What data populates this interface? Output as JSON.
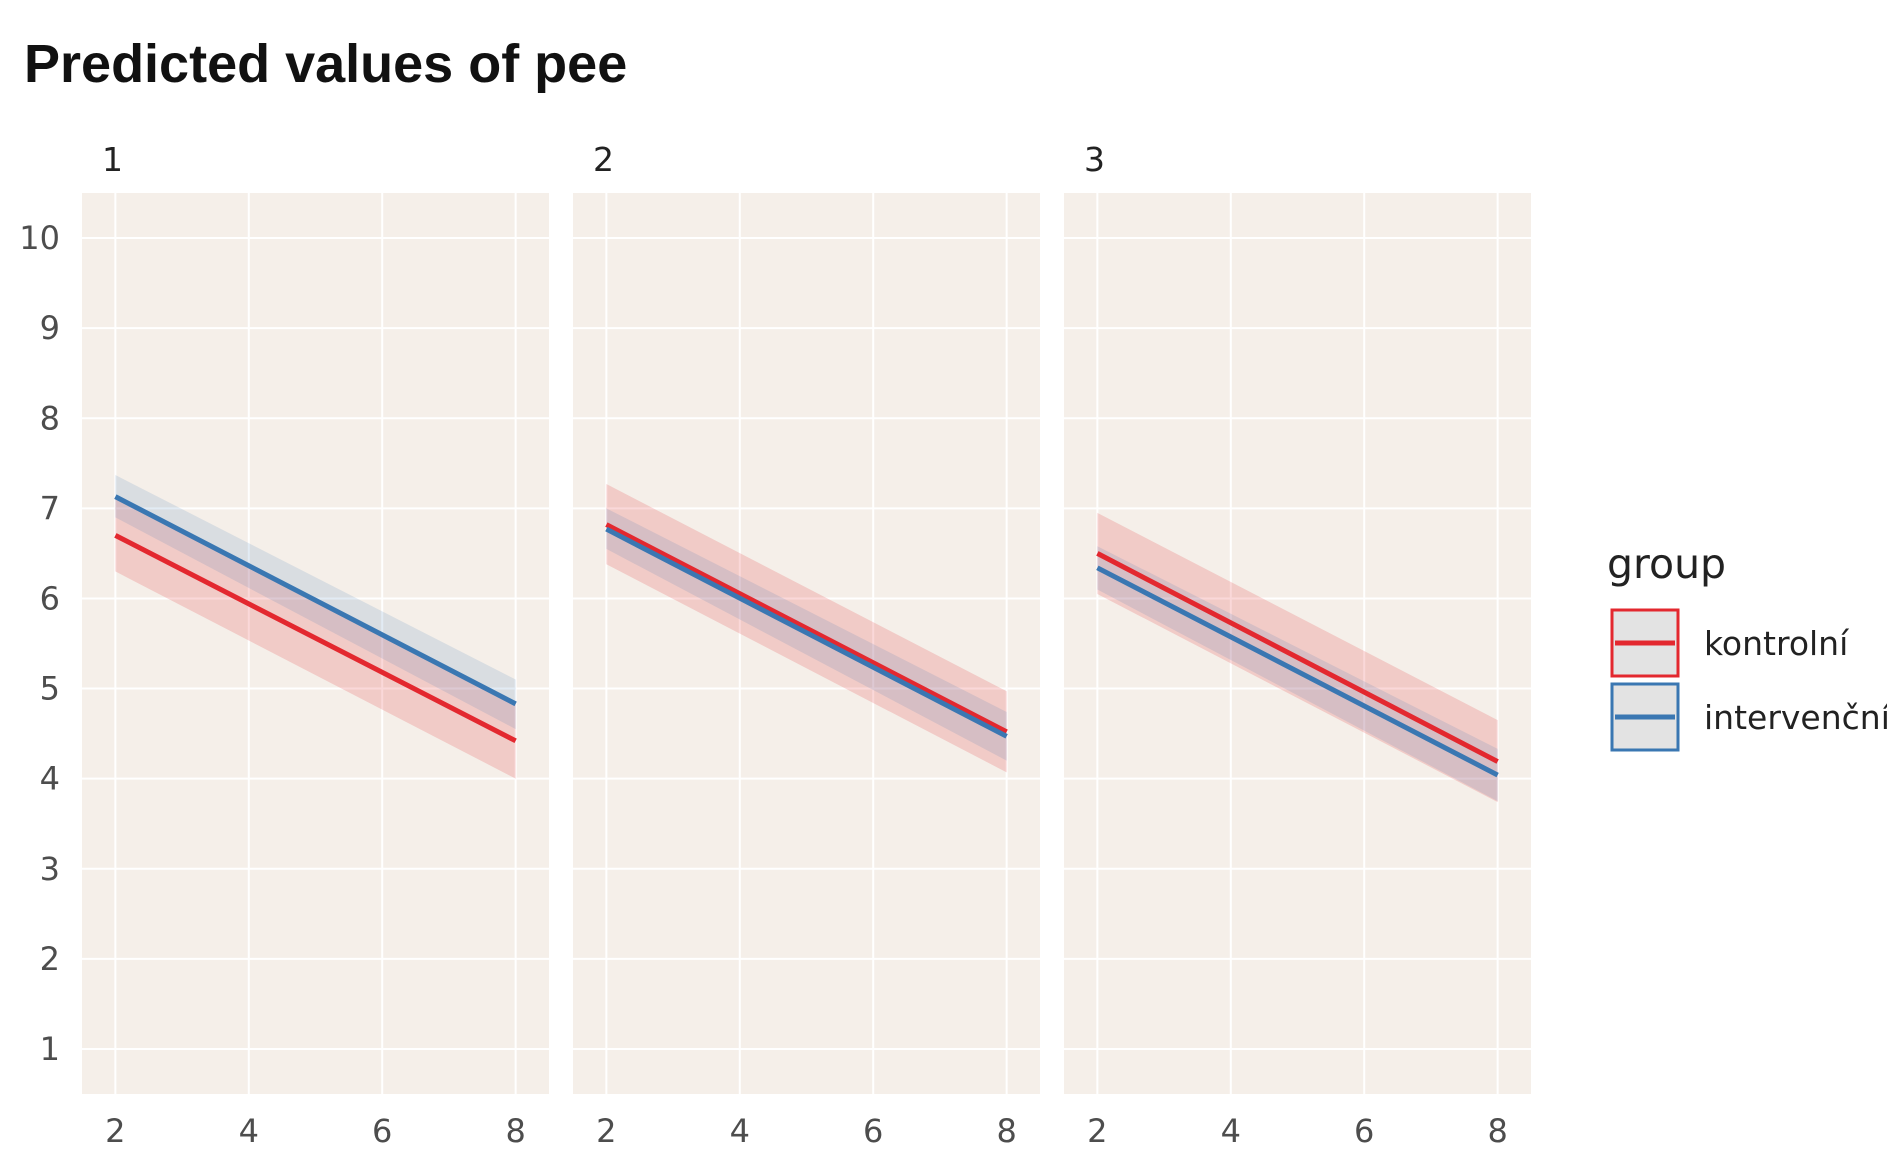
{
  "chart_data": {
    "type": "line",
    "title": "Predicted values of pee",
    "xlabel": "",
    "ylabel": "",
    "xlim": [
      1.5,
      8.5
    ],
    "ylim": [
      0.5,
      10.5
    ],
    "x_ticks": [
      2,
      4,
      6,
      8
    ],
    "y_ticks": [
      1,
      2,
      3,
      4,
      5,
      6,
      7,
      8,
      9,
      10
    ],
    "grid": true,
    "background": "#f5efe9",
    "legend": {
      "title": "group",
      "position": "right",
      "entries": [
        {
          "name": "kontrolní",
          "color": "#e3282f"
        },
        {
          "name": "intervenční",
          "color": "#3a77b2"
        }
      ]
    },
    "panels": [
      {
        "label": "1",
        "series": [
          {
            "name": "kontrolní",
            "color": "#e3282f",
            "x": [
              2,
              8
            ],
            "y": [
              6.7,
              4.42
            ],
            "ci_low": [
              6.3,
              4.0
            ],
            "ci_high": [
              7.1,
              4.85
            ]
          },
          {
            "name": "intervenční",
            "color": "#3a77b2",
            "x": [
              2,
              8
            ],
            "y": [
              7.13,
              4.83
            ],
            "ci_low": [
              6.9,
              4.55
            ],
            "ci_high": [
              7.37,
              5.1
            ]
          }
        ]
      },
      {
        "label": "2",
        "series": [
          {
            "name": "kontrolní",
            "color": "#e3282f",
            "x": [
              2,
              8
            ],
            "y": [
              6.82,
              4.52
            ],
            "ci_low": [
              6.38,
              4.07
            ],
            "ci_high": [
              7.27,
              4.97
            ]
          },
          {
            "name": "intervenční",
            "color": "#3a77b2",
            "x": [
              2,
              8
            ],
            "y": [
              6.77,
              4.47
            ],
            "ci_low": [
              6.55,
              4.2
            ],
            "ci_high": [
              7.0,
              4.74
            ]
          }
        ]
      },
      {
        "label": "3",
        "series": [
          {
            "name": "kontrolní",
            "color": "#e3282f",
            "x": [
              2,
              8
            ],
            "y": [
              6.5,
              4.19
            ],
            "ci_low": [
              6.05,
              3.74
            ],
            "ci_high": [
              6.95,
              4.65
            ]
          },
          {
            "name": "intervenční",
            "color": "#3a77b2",
            "x": [
              2,
              8
            ],
            "y": [
              6.34,
              4.04
            ],
            "ci_low": [
              6.1,
              3.75
            ],
            "ci_high": [
              6.58,
              4.33
            ]
          }
        ]
      }
    ]
  }
}
